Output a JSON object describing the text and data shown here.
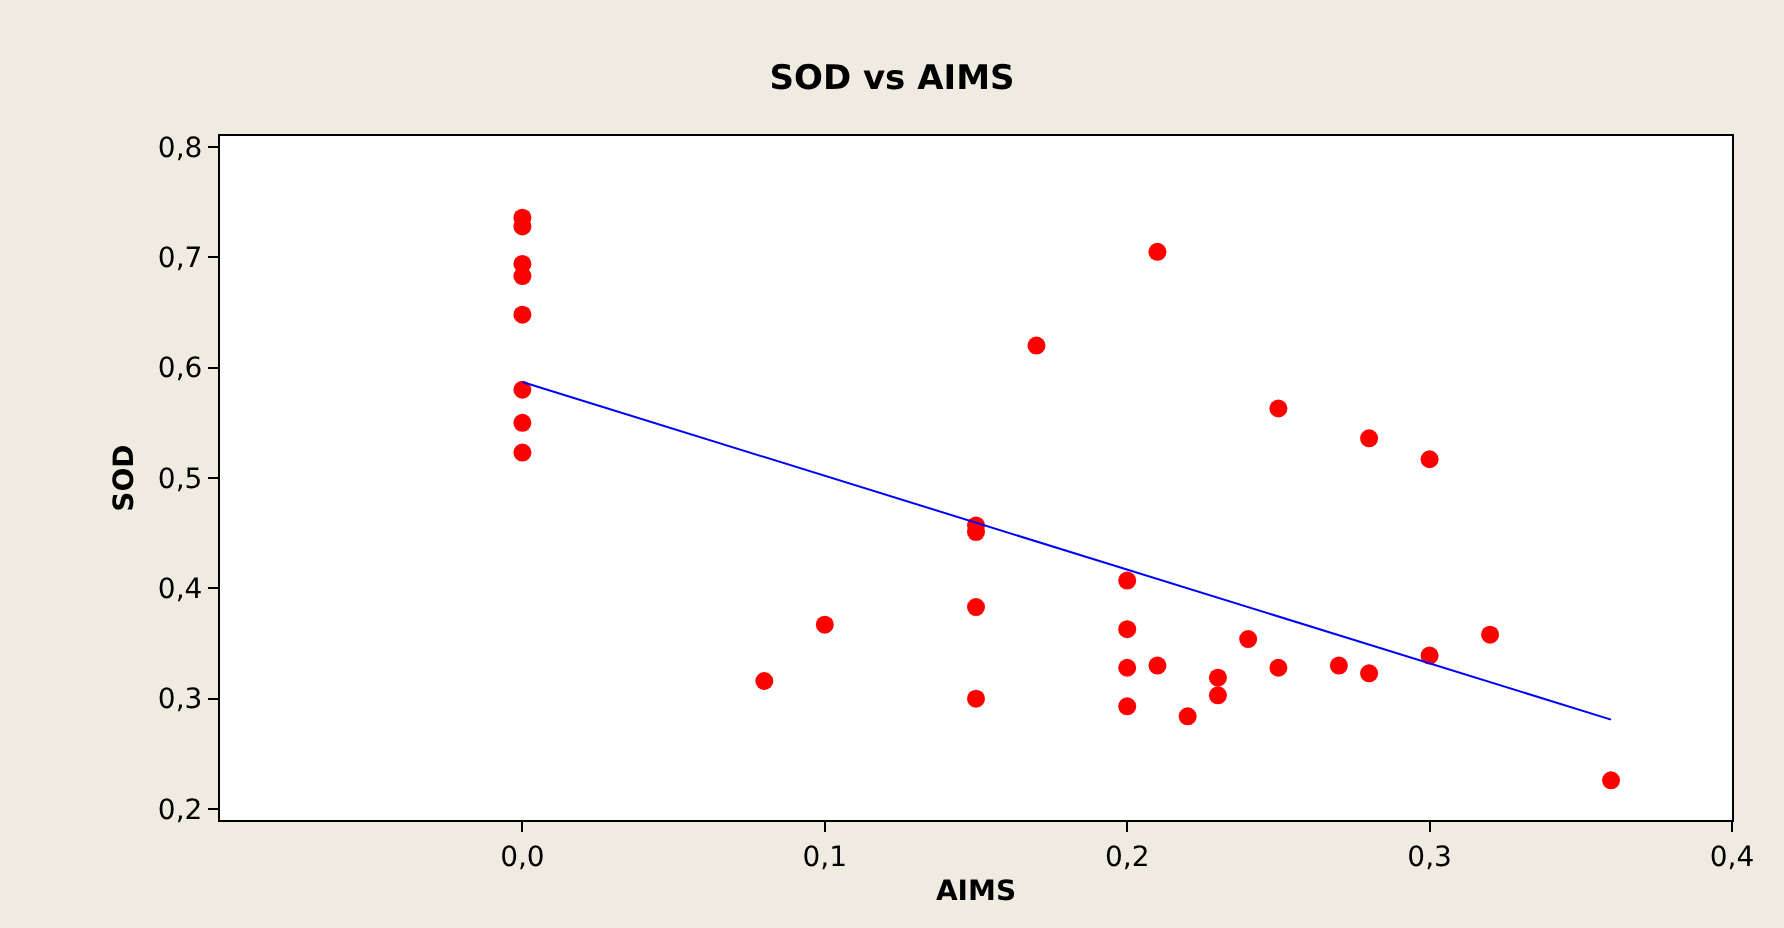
{
  "chart_data": {
    "type": "scatter",
    "title": "SOD vs AIMS",
    "xlabel": "AIMS",
    "ylabel": "SOD",
    "xlim": [
      -0.1,
      0.4
    ],
    "ylim": [
      0.19,
      0.81
    ],
    "xticks": [
      {
        "value": 0.0,
        "label": "0,0"
      },
      {
        "value": 0.1,
        "label": "0,1"
      },
      {
        "value": 0.2,
        "label": "0,2"
      },
      {
        "value": 0.3,
        "label": "0,3"
      },
      {
        "value": 0.4,
        "label": "0,4"
      }
    ],
    "yticks": [
      {
        "value": 0.2,
        "label": "0,2"
      },
      {
        "value": 0.3,
        "label": "0,3"
      },
      {
        "value": 0.4,
        "label": "0,4"
      },
      {
        "value": 0.5,
        "label": "0,5"
      },
      {
        "value": 0.6,
        "label": "0,6"
      },
      {
        "value": 0.7,
        "label": "0,7"
      },
      {
        "value": 0.8,
        "label": "0,8"
      }
    ],
    "marker": "circle",
    "series": [
      {
        "color": "#ff0000",
        "x": [
          0,
          0,
          0,
          0,
          0,
          0,
          0,
          0,
          0.08,
          0.1,
          0.17,
          0.15,
          0.15,
          0.15,
          0.15,
          0.21,
          0.2,
          0.2,
          0.2,
          0.2,
          0.21,
          0.22,
          0.23,
          0.23,
          0.24,
          0.25,
          0.25,
          0.27,
          0.28,
          0.28,
          0.3,
          0.3,
          0.32,
          0.36
        ],
        "values": [
          0.736,
          0.728,
          0.694,
          0.683,
          0.648,
          0.58,
          0.55,
          0.523,
          0.316,
          0.367,
          0.62,
          0.457,
          0.451,
          0.383,
          0.3,
          0.705,
          0.407,
          0.363,
          0.328,
          0.293,
          0.33,
          0.284,
          0.319,
          0.303,
          0.354,
          0.563,
          0.328,
          0.33,
          0.536,
          0.323,
          0.517,
          0.339,
          0.358,
          0.226
        ]
      },
      {
        "type": "line",
        "marker": "none",
        "color": "#0000ff",
        "x": [
          0,
          0.36
        ],
        "values": [
          0.587,
          0.281
        ]
      }
    ]
  }
}
